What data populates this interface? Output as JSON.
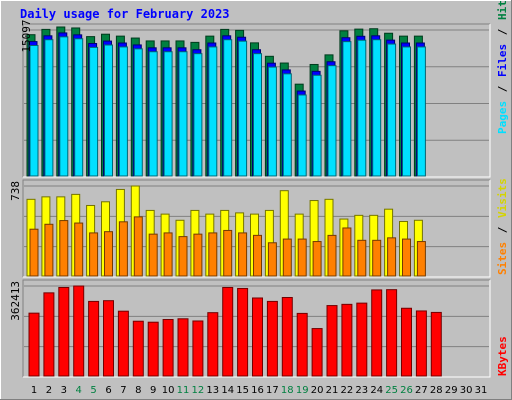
{
  "chart_data": [
    {
      "type": "bar",
      "title": "Daily usage for February 2023",
      "categories": [
        "1",
        "2",
        "3",
        "4",
        "5",
        "6",
        "7",
        "8",
        "9",
        "10",
        "11",
        "12",
        "13",
        "14",
        "15",
        "16",
        "17",
        "18",
        "19",
        "20",
        "21",
        "22",
        "23",
        "24",
        "25",
        "26",
        "27",
        "28",
        "29",
        "30",
        "31"
      ],
      "weekend_days": [
        "4",
        "5",
        "11",
        "12",
        "18",
        "19",
        "25",
        "26"
      ],
      "ymax_label": "15097",
      "series": [
        {
          "name": "Hits",
          "color": "#008040",
          "values": [
            14500,
            15050,
            15300,
            15200,
            14300,
            14550,
            14350,
            14150,
            13850,
            13850,
            13850,
            13700,
            14350,
            15050,
            14950,
            13650,
            12250,
            11550,
            9350,
            11400,
            12400,
            14900,
            15080,
            15120,
            14650,
            14350,
            14350,
            null,
            null,
            null,
            null
          ]
        },
        {
          "name": "Files",
          "color": "#0000ff",
          "values": [
            14200,
            14800,
            15100,
            14900,
            14000,
            14250,
            14050,
            13850,
            13550,
            13550,
            13550,
            13350,
            14050,
            14800,
            14650,
            13350,
            11950,
            11250,
            9050,
            11100,
            12100,
            14600,
            14750,
            14800,
            14350,
            14050,
            14050,
            null,
            null,
            null,
            null
          ]
        },
        {
          "name": "Pages",
          "color": "#00e0ff",
          "values": [
            14000,
            14600,
            14900,
            14700,
            13800,
            14050,
            13850,
            13650,
            13350,
            13350,
            13350,
            13150,
            13850,
            14600,
            14450,
            13150,
            11750,
            11050,
            8850,
            10900,
            11900,
            14400,
            14550,
            14600,
            14150,
            13850,
            13850,
            null,
            null,
            null,
            null
          ]
        }
      ],
      "ylabel": "Pages / Files / Hits",
      "ylabel_parts": [
        "Pages",
        "/",
        "Files",
        "/",
        "Hits"
      ]
    },
    {
      "type": "bar",
      "categories": [
        "1",
        "2",
        "3",
        "4",
        "5",
        "6",
        "7",
        "8",
        "9",
        "10",
        "11",
        "12",
        "13",
        "14",
        "15",
        "16",
        "17",
        "18",
        "19",
        "20",
        "21",
        "22",
        "23",
        "24",
        "25",
        "26",
        "27",
        "28",
        "29",
        "30",
        "31"
      ],
      "ymax_label": "738",
      "series": [
        {
          "name": "Visits",
          "color": "#ffff00",
          "values": [
            630,
            650,
            650,
            670,
            580,
            610,
            710,
            738,
            540,
            510,
            460,
            540,
            510,
            540,
            520,
            510,
            540,
            700,
            510,
            620,
            630,
            470,
            500,
            500,
            550,
            450,
            460,
            null,
            null,
            null,
            null
          ]
        },
        {
          "name": "Sites",
          "color": "#ff8000",
          "values": [
            420,
            460,
            490,
            470,
            390,
            400,
            480,
            520,
            380,
            390,
            360,
            380,
            390,
            410,
            390,
            370,
            310,
            340,
            340,
            320,
            370,
            430,
            330,
            330,
            350,
            340,
            320,
            null,
            null,
            null,
            null
          ]
        }
      ],
      "ylabel": "Sites / Visits",
      "ylabel_parts": [
        "Sites",
        "/",
        "Visits"
      ]
    },
    {
      "type": "bar",
      "categories": [
        "1",
        "2",
        "3",
        "4",
        "5",
        "6",
        "7",
        "8",
        "9",
        "10",
        "11",
        "12",
        "13",
        "14",
        "15",
        "16",
        "17",
        "18",
        "19",
        "20",
        "21",
        "22",
        "23",
        "24",
        "25",
        "26",
        "27",
        "28",
        "29",
        "30",
        "31"
      ],
      "ymax_label": "362413",
      "series": [
        {
          "name": "KBytes",
          "color": "#ff0000",
          "values": [
            261000,
            344000,
            366000,
            372000,
            309000,
            312000,
            269000,
            228000,
            224000,
            235000,
            238000,
            229000,
            263000,
            366000,
            362000,
            323000,
            309000,
            325000,
            260000,
            198000,
            292000,
            297000,
            302000,
            356000,
            357000,
            281000,
            270000,
            264000,
            null,
            null,
            null
          ]
        }
      ],
      "ylabel": "KBytes"
    }
  ]
}
